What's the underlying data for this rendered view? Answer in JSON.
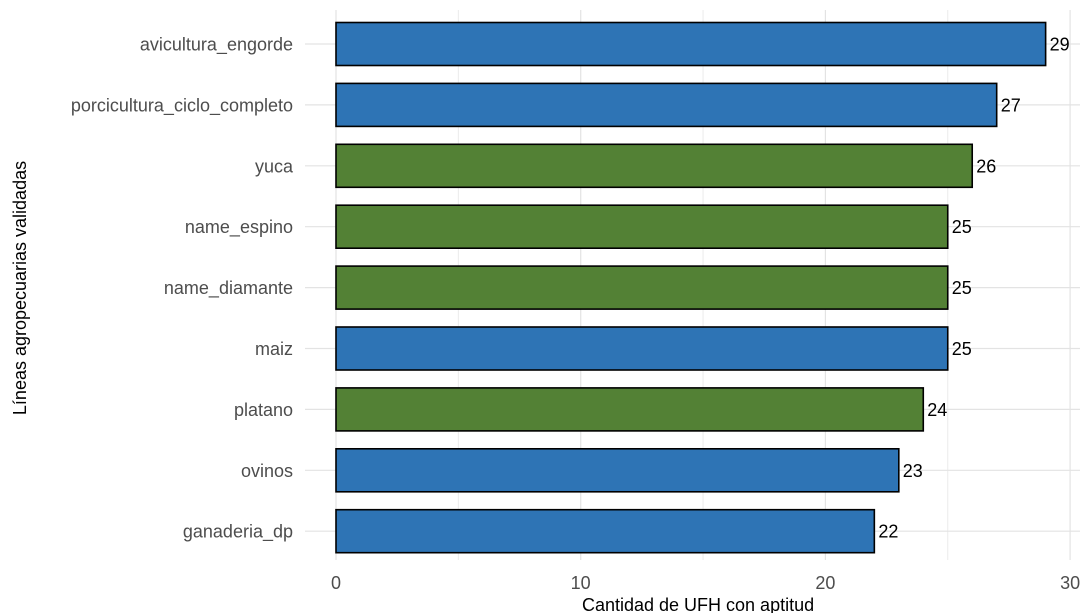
{
  "chart_data": {
    "type": "bar",
    "orientation": "horizontal",
    "categories": [
      "avicultura_engorde",
      "porcicultura_ciclo_completo",
      "yuca",
      "name_espino",
      "name_diamante",
      "maiz",
      "platano",
      "ovinos",
      "ganaderia_dp"
    ],
    "values": [
      29,
      27,
      26,
      25,
      25,
      25,
      24,
      23,
      22
    ],
    "bar_colors": [
      "#2e74b5",
      "#2e74b5",
      "#538135",
      "#538135",
      "#538135",
      "#2e74b5",
      "#538135",
      "#2e74b5",
      "#2e74b5"
    ],
    "data_labels": [
      "29",
      "27",
      "26",
      "25",
      "25",
      "25",
      "24",
      "23",
      "22"
    ],
    "xlabel": "Cantidad de UFH con aptitud",
    "ylabel": "Líneas agropecuarias validadas",
    "x_ticks": [
      0,
      10,
      20,
      30
    ],
    "x_tick_labels": [
      "0",
      "10",
      "20",
      "30"
    ],
    "xlim": [
      0,
      30
    ],
    "grid": true,
    "legend": "none"
  }
}
